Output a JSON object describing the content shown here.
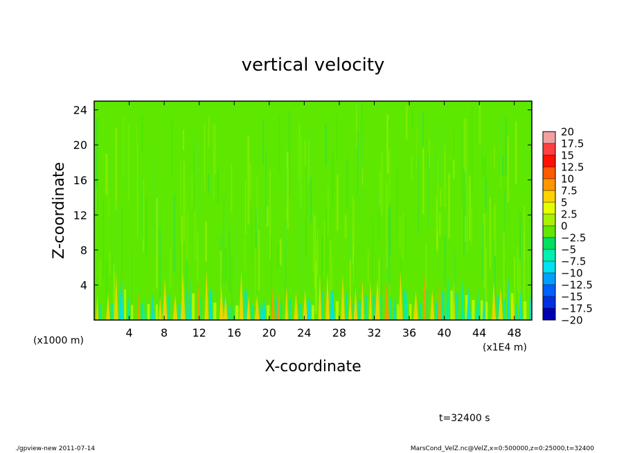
{
  "chart_data": {
    "type": "heatmap",
    "title": "vertical velocity",
    "xlabel": "X-coordinate",
    "ylabel": "Z-coordinate",
    "x_unit_label": "(x1E4 m)",
    "y_unit_label": "(x1000 m)",
    "xlim": [
      0,
      50
    ],
    "ylim": [
      0,
      25
    ],
    "x_ticks": [
      4,
      8,
      12,
      16,
      20,
      24,
      28,
      32,
      36,
      40,
      44,
      48
    ],
    "y_ticks": [
      4,
      8,
      12,
      16,
      20,
      24
    ],
    "x_tick_labels": [
      "4",
      "8",
      "12",
      "16",
      "20",
      "24",
      "28",
      "32",
      "36",
      "40",
      "44",
      "48"
    ],
    "y_tick_labels": [
      "4",
      "8",
      "12",
      "16",
      "20",
      "24"
    ],
    "colorbar": {
      "levels": [
        20,
        17.5,
        15,
        12.5,
        10,
        7.5,
        5,
        2.5,
        0,
        -2.5,
        -5,
        -7.5,
        -10,
        -12.5,
        -15,
        -17.5,
        -20
      ],
      "labels": [
        "20",
        "17.5",
        "15",
        "12.5",
        "10",
        "7.5",
        "5",
        "2.5",
        "0",
        "−2.5",
        "−5",
        "−7.5",
        "−10",
        "−12.5",
        "−15",
        "−17.5",
        "−20"
      ],
      "colors": [
        "#f0a0a0",
        "#ff4040",
        "#ff1000",
        "#ff5a00",
        "#ff9600",
        "#ffd200",
        "#e6ff00",
        "#aaf000",
        "#64e600",
        "#00e060",
        "#00f0b0",
        "#00e0f0",
        "#00a0ff",
        "#0060ff",
        "#0030e0",
        "#0000b0",
        "#6a0090"
      ]
    },
    "field_description": "near-zero vertical velocity throughout; alternating updraft/downdraft columns below z=6"
  },
  "annotation": {
    "time_label": "t=32400 s"
  },
  "footer": {
    "left": "./gpview-new   2011-07-14",
    "right": "MarsCond_VelZ.nc@VelZ,x=0:500000,z=0:25000,t=32400"
  }
}
